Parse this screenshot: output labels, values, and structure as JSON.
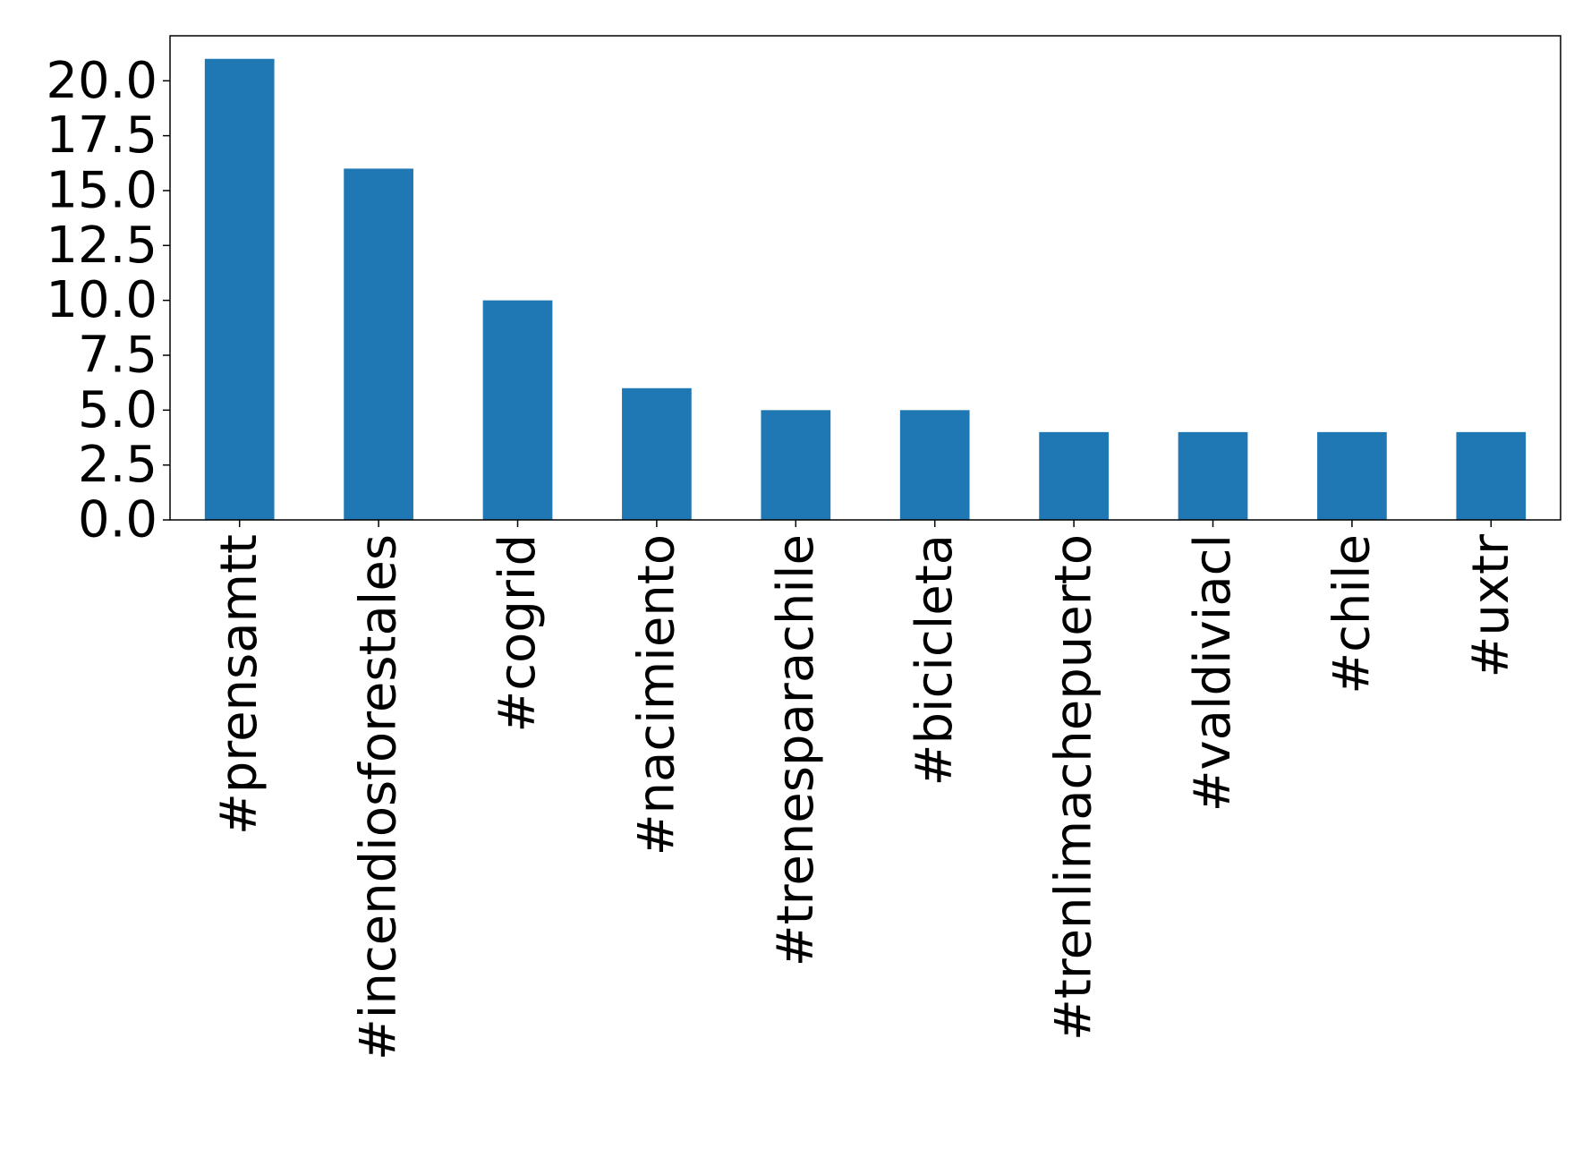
{
  "chart_data": {
    "type": "bar",
    "categories": [
      "#prensamtt",
      "#incendiosforestales",
      "#cogrid",
      "#nacimiento",
      "#trenesparachile",
      "#bicicleta",
      "#trenlimachepuerto",
      "#valdiviacl",
      "#chile",
      "#uxtr"
    ],
    "values": [
      21,
      16,
      10,
      6,
      5,
      5,
      4,
      4,
      4,
      4
    ],
    "title": "",
    "xlabel": "",
    "ylabel": "",
    "ylim": [
      0,
      22.05
    ],
    "yticks": [
      "0.0",
      "2.5",
      "5.0",
      "7.5",
      "10.0",
      "12.5",
      "15.0",
      "17.5",
      "20.0"
    ],
    "grid": false,
    "bar_color": "#1f77b4"
  }
}
